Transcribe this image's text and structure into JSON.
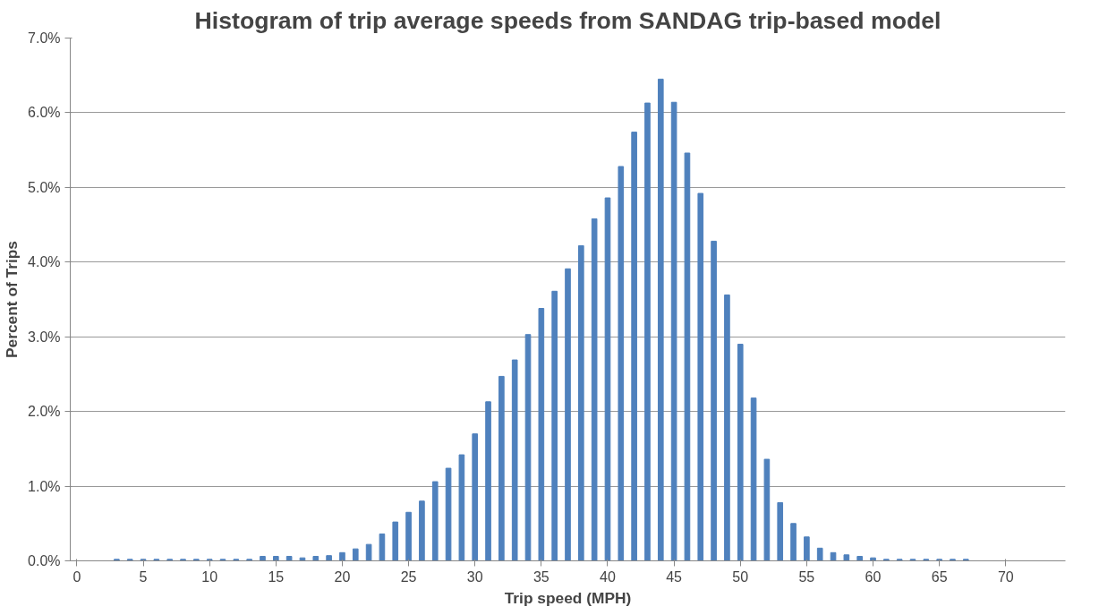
{
  "chart_data": {
    "type": "bar",
    "title": "Histogram of trip average speeds from SANDAG trip-based model",
    "xlabel": "Trip speed (MPH)",
    "ylabel": "Percent of Trips",
    "categories": [
      "0",
      null,
      null,
      null,
      null,
      "5",
      null,
      null,
      null,
      null,
      "10",
      null,
      null,
      null,
      null,
      "15",
      null,
      null,
      null,
      null,
      "20",
      null,
      null,
      null,
      null,
      "25",
      null,
      null,
      null,
      null,
      "30",
      null,
      null,
      null,
      null,
      "35",
      null,
      null,
      null,
      null,
      "40",
      null,
      null,
      null,
      null,
      "45",
      null,
      null,
      null,
      null,
      "50",
      null,
      null,
      null,
      null,
      "55",
      null,
      null,
      null,
      null,
      "60",
      null,
      null,
      null,
      null,
      "65",
      null,
      null,
      null,
      null,
      "70",
      null,
      null,
      null,
      null
    ],
    "values": [
      null,
      null,
      null,
      0.02,
      0.02,
      0.02,
      0.02,
      0.02,
      0.02,
      0.02,
      0.02,
      0.02,
      0.02,
      0.02,
      0.06,
      0.06,
      0.06,
      0.04,
      0.06,
      0.07,
      0.11,
      0.16,
      0.22,
      0.36,
      0.52,
      0.65,
      0.8,
      1.06,
      1.24,
      1.42,
      1.7,
      2.13,
      2.47,
      2.69,
      3.03,
      3.38,
      3.61,
      3.91,
      4.22,
      4.58,
      4.86,
      5.28,
      5.74,
      6.13,
      6.45,
      6.14,
      5.46,
      4.92,
      4.28,
      3.56,
      2.9,
      2.18,
      1.36,
      0.78,
      0.5,
      0.32,
      0.17,
      0.11,
      0.08,
      0.06,
      0.04,
      0.02,
      0.02,
      0.02,
      0.02,
      0.02,
      0.02,
      0.02,
      null,
      null,
      null,
      null,
      null,
      null,
      null
    ],
    "color": "#4f81bd",
    "ylim": [
      0,
      7
    ],
    "yticks": [
      {
        "value": 0,
        "label": "0.0%"
      },
      {
        "value": 1,
        "label": "1.0%"
      },
      {
        "value": 2,
        "label": "2.0%"
      },
      {
        "value": 3,
        "label": "3.0%"
      },
      {
        "value": 4,
        "label": "4.0%"
      },
      {
        "value": 5,
        "label": "5.0%"
      },
      {
        "value": 6,
        "label": "6.0%"
      },
      {
        "value": 7,
        "label": "7.0%"
      }
    ],
    "grid": "y"
  }
}
